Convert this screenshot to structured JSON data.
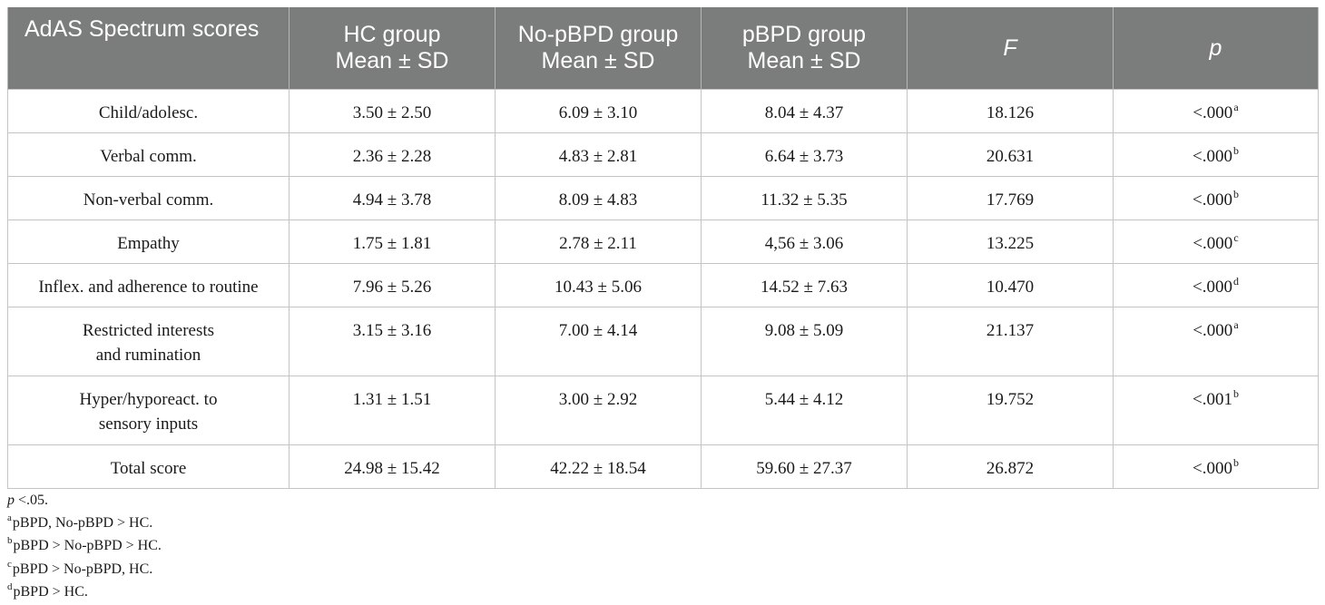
{
  "table": {
    "headers": [
      {
        "lines": [
          "AdAS Spectrum scores"
        ]
      },
      {
        "lines": [
          "HC group",
          "Mean ± SD"
        ]
      },
      {
        "lines": [
          "No-pBPD group",
          "Mean ± SD"
        ]
      },
      {
        "lines": [
          "pBPD group",
          "Mean ± SD"
        ]
      },
      {
        "lines": [
          "F"
        ]
      },
      {
        "lines": [
          "p"
        ]
      }
    ],
    "rows": [
      {
        "label": [
          "Child/adolesc."
        ],
        "hc": "3.50 ± 2.50",
        "no_pbpd": "6.09 ± 3.10",
        "pbpd": "8.04 ± 4.37",
        "f": "18.126",
        "p": "<.000",
        "p_sup": "a"
      },
      {
        "label": [
          "Verbal comm."
        ],
        "hc": "2.36 ± 2.28",
        "no_pbpd": "4.83 ± 2.81",
        "pbpd": "6.64 ± 3.73",
        "f": "20.631",
        "p": "<.000",
        "p_sup": "b"
      },
      {
        "label": [
          "Non-verbal comm."
        ],
        "hc": "4.94 ± 3.78",
        "no_pbpd": "8.09 ± 4.83",
        "pbpd": "11.32 ± 5.35",
        "f": "17.769",
        "p": "<.000",
        "p_sup": "b"
      },
      {
        "label": [
          "Empathy"
        ],
        "hc": "1.75 ± 1.81",
        "no_pbpd": "2.78 ± 2.11",
        "pbpd": "4,56 ± 3.06",
        "f": "13.225",
        "p": "<.000",
        "p_sup": "c"
      },
      {
        "label": [
          "Inflex. and adherence to routine"
        ],
        "hc": "7.96 ± 5.26",
        "no_pbpd": "10.43 ± 5.06",
        "pbpd": "14.52 ± 7.63",
        "f": "10.470",
        "p": "<.000",
        "p_sup": "d"
      },
      {
        "label": [
          "Restricted interests",
          "and rumination"
        ],
        "hc": "3.15 ± 3.16",
        "no_pbpd": "7.00 ± 4.14",
        "pbpd": "9.08 ± 5.09",
        "f": "21.137",
        "p": "<.000",
        "p_sup": "a"
      },
      {
        "label": [
          "Hyper/hyporeact. to",
          "sensory inputs"
        ],
        "hc": "1.31 ± 1.51",
        "no_pbpd": "3.00 ± 2.92",
        "pbpd": "5.44 ± 4.12",
        "f": "19.752",
        "p": "<.001",
        "p_sup": "b"
      },
      {
        "label": [
          "Total score"
        ],
        "hc": "24.98 ± 15.42",
        "no_pbpd": "42.22 ± 18.54",
        "pbpd": "59.60 ± 27.37",
        "f": "26.872",
        "p": "<.000",
        "p_sup": "b"
      }
    ]
  },
  "notes": {
    "significance": {
      "italic": "p",
      "text": " <.05."
    },
    "footnotes": [
      {
        "sup": "a",
        "text": "pBPD, No-pBPD > HC."
      },
      {
        "sup": "b",
        "text": "pBPD > No-pBPD > HC."
      },
      {
        "sup": "c",
        "text": "pBPD > No-pBPD, HC."
      },
      {
        "sup": "d",
        "text": "pBPD > HC."
      }
    ]
  },
  "colors": {
    "header_bg": "#7b7d7c",
    "header_text": "#ffffff",
    "grid": "#c4c4c4"
  }
}
